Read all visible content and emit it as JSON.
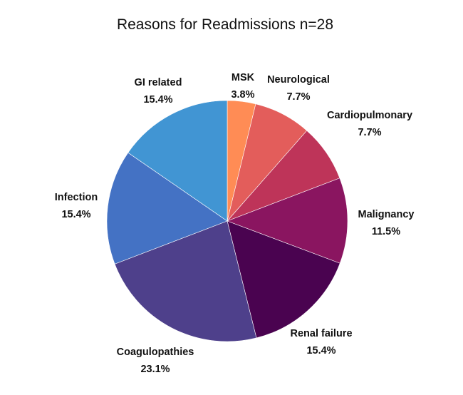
{
  "chart_data": {
    "type": "pie",
    "title": "Reasons for Readmissions n=28",
    "slices": [
      {
        "name": "MSK",
        "value": 3.8,
        "value_label": "3.8%",
        "color": "#FF8C55"
      },
      {
        "name": "Neurological",
        "value": 7.7,
        "value_label": "7.7%",
        "color": "#E35D5B"
      },
      {
        "name": "Cardiopulmonary",
        "value": 7.7,
        "value_label": "7.7%",
        "color": "#BE3459"
      },
      {
        "name": "Malignancy",
        "value": 11.5,
        "value_label": "11.5%",
        "color": "#8A1560"
      },
      {
        "name": "Renal failure",
        "value": 15.4,
        "value_label": "15.4%",
        "color": "#4A0350"
      },
      {
        "name": "Coagulopathies",
        "value": 23.1,
        "value_label": "23.1%",
        "color": "#4E408B"
      },
      {
        "name": "Infection",
        "value": 15.4,
        "value_label": "15.4%",
        "color": "#4472C4"
      },
      {
        "name": "GI related",
        "value": 15.4,
        "value_label": "15.4%",
        "color": "#4195D3"
      }
    ],
    "start": "12 o'clock",
    "direction": "clockwise",
    "legend": "none (labels beside slices)"
  }
}
